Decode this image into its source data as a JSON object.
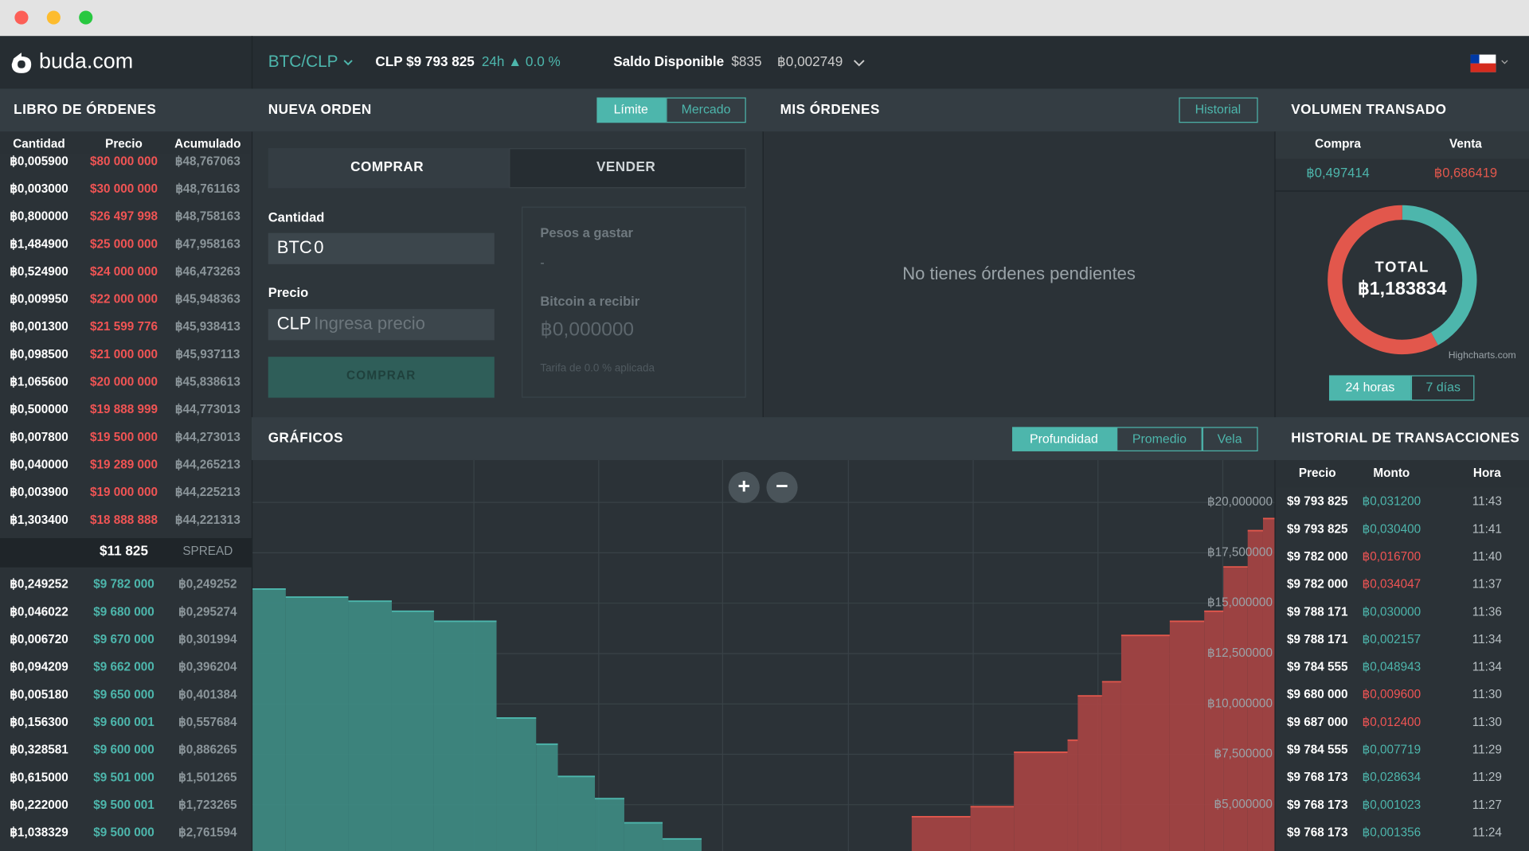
{
  "nav": {
    "brand": "buda.com",
    "market": "BTC/CLP",
    "price": "CLP $9 793 825",
    "change": "24h ▲ 0.0 %",
    "balance_label": "Saldo Disponible",
    "balance_clp": "$835",
    "balance_btc": "฿0,002749"
  },
  "order_book": {
    "title": "LIBRO DE ÓRDENES",
    "columns": [
      "Cantidad",
      "Precio",
      "Acumulado"
    ],
    "asks": [
      [
        "฿0,005900",
        "$80 000 000",
        "฿48,767063"
      ],
      [
        "฿0,003000",
        "$30 000 000",
        "฿48,761163"
      ],
      [
        "฿0,800000",
        "$26 497 998",
        "฿48,758163"
      ],
      [
        "฿1,484900",
        "$25 000 000",
        "฿47,958163"
      ],
      [
        "฿0,524900",
        "$24 000 000",
        "฿46,473263"
      ],
      [
        "฿0,009950",
        "$22 000 000",
        "฿45,948363"
      ],
      [
        "฿0,001300",
        "$21 599 776",
        "฿45,938413"
      ],
      [
        "฿0,098500",
        "$21 000 000",
        "฿45,937113"
      ],
      [
        "฿1,065600",
        "$20 000 000",
        "฿45,838613"
      ],
      [
        "฿0,500000",
        "$19 888 999",
        "฿44,773013"
      ],
      [
        "฿0,007800",
        "$19 500 000",
        "฿44,273013"
      ],
      [
        "฿0,040000",
        "$19 289 000",
        "฿44,265213"
      ],
      [
        "฿0,003900",
        "$19 000 000",
        "฿44,225213"
      ],
      [
        "฿1,303400",
        "$18 888 888",
        "฿44,221313"
      ]
    ],
    "spread": "$11 825",
    "spread_label": "SPREAD",
    "bids": [
      [
        "฿0,249252",
        "$9 782 000",
        "฿0,249252"
      ],
      [
        "฿0,046022",
        "$9 680 000",
        "฿0,295274"
      ],
      [
        "฿0,006720",
        "$9 670 000",
        "฿0,301994"
      ],
      [
        "฿0,094209",
        "$9 662 000",
        "฿0,396204"
      ],
      [
        "฿0,005180",
        "$9 650 000",
        "฿0,401384"
      ],
      [
        "฿0,156300",
        "$9 600 001",
        "฿0,557684"
      ],
      [
        "฿0,328581",
        "$9 600 000",
        "฿0,886265"
      ],
      [
        "฿0,615000",
        "$9 501 000",
        "฿1,501265"
      ],
      [
        "฿0,222000",
        "$9 500 001",
        "฿1,723265"
      ],
      [
        "฿1,038329",
        "$9 500 000",
        "฿2,761594"
      ]
    ]
  },
  "new_order": {
    "title": "NUEVA ORDEN",
    "modes": [
      "Límite",
      "Mercado"
    ],
    "tabs": [
      "COMPRAR",
      "VENDER"
    ],
    "amount_label": "Cantidad",
    "amount_unit": "BTC",
    "amount_value": "0",
    "price_label": "Precio",
    "price_unit": "CLP",
    "price_placeholder": "Ingresa precio",
    "submit": "COMPRAR",
    "spend_label": "Pesos a gastar",
    "spend_value": "-",
    "receive_label": "Bitcoin a recibir",
    "receive_value": "฿0,000000",
    "fee": "Tarifa de 0.0 % aplicada"
  },
  "my_orders": {
    "title": "MIS ÓRDENES",
    "history_button": "Historial",
    "empty": "No tienes órdenes pendientes"
  },
  "volume": {
    "title": "VOLUMEN TRANSADO",
    "columns": [
      "Compra",
      "Venta"
    ],
    "values": [
      0.497414,
      0.686419
    ],
    "value_labels": [
      "฿0,497414",
      "฿0,686419"
    ],
    "colors": [
      "#4db6ac",
      "#e2574c"
    ],
    "total_label": "TOTAL",
    "total": "฿1,183834",
    "credit": "Highcharts.com",
    "periods": [
      "24 horas",
      "7 días"
    ]
  },
  "charts": {
    "title": "GRÁFICOS",
    "views": [
      "Profundidad",
      "Promedio",
      "Vela"
    ],
    "zoom_in": "+",
    "zoom_out": "−"
  },
  "chart_data": {
    "type": "step-area",
    "xlim": [
      9400000,
      10200000
    ],
    "ylim": [
      2.7,
      22.1
    ],
    "yticks": [
      {
        "value": 20,
        "label": "฿20,000000"
      },
      {
        "value": 17.5,
        "label": "฿17,500000"
      },
      {
        "value": 15,
        "label": "฿15,000000"
      },
      {
        "value": 12.5,
        "label": "฿12,500000"
      },
      {
        "value": 10,
        "label": "฿10,000000"
      },
      {
        "value": 7.5,
        "label": "฿7,500000"
      },
      {
        "value": 5,
        "label": "฿5,000000"
      }
    ],
    "grid": true,
    "series": [
      {
        "color": "#3e8c84",
        "x": [
          9400000,
          9426000,
          9475000,
          9509000,
          9542000,
          9591000,
          9622000,
          9639000,
          9668000,
          9691000,
          9721000
        ],
        "values": [
          15.7,
          15.3,
          15.1,
          14.6,
          14.1,
          9.3,
          8.0,
          6.4,
          5.3,
          4.1,
          3.3
        ]
      },
      {
        "color": "#a94444",
        "x": [
          9916000,
          9962000,
          9996000,
          10038000,
          10046000,
          10065000,
          10080000,
          10118000,
          10145000,
          10160000,
          10179000,
          10191000
        ],
        "values": [
          4.4,
          4.9,
          7.6,
          8.2,
          10.4,
          11.1,
          13.4,
          14.1,
          14.6,
          16.8,
          18.6,
          19.2
        ]
      }
    ]
  },
  "trade_history": {
    "title": "HISTORIAL DE TRANSACCIONES",
    "columns": [
      "Precio",
      "Monto",
      "Hora"
    ],
    "rows": [
      {
        "cells": [
          "$9 793 825",
          "฿0,031200",
          "11:43"
        ],
        "color": "#4db6ac"
      },
      {
        "cells": [
          "$9 793 825",
          "฿0,030400",
          "11:41"
        ],
        "color": "#4db6ac"
      },
      {
        "cells": [
          "$9 782 000",
          "฿0,016700",
          "11:40"
        ],
        "color": "#f05454"
      },
      {
        "cells": [
          "$9 782 000",
          "฿0,034047",
          "11:37"
        ],
        "color": "#f05454"
      },
      {
        "cells": [
          "$9 788 171",
          "฿0,030000",
          "11:36"
        ],
        "color": "#4db6ac"
      },
      {
        "cells": [
          "$9 788 171",
          "฿0,002157",
          "11:34"
        ],
        "color": "#4db6ac"
      },
      {
        "cells": [
          "$9 784 555",
          "฿0,048943",
          "11:34"
        ],
        "color": "#4db6ac"
      },
      {
        "cells": [
          "$9 680 000",
          "฿0,009600",
          "11:30"
        ],
        "color": "#f05454"
      },
      {
        "cells": [
          "$9 687 000",
          "฿0,012400",
          "11:30"
        ],
        "color": "#f05454"
      },
      {
        "cells": [
          "$9 784 555",
          "฿0,007719",
          "11:29"
        ],
        "color": "#4db6ac"
      },
      {
        "cells": [
          "$9 768 173",
          "฿0,028634",
          "11:29"
        ],
        "color": "#4db6ac"
      },
      {
        "cells": [
          "$9 768 173",
          "฿0,001023",
          "11:27"
        ],
        "color": "#4db6ac"
      },
      {
        "cells": [
          "$9 768 173",
          "฿0,001356",
          "11:24"
        ],
        "color": "#4db6ac"
      }
    ]
  }
}
